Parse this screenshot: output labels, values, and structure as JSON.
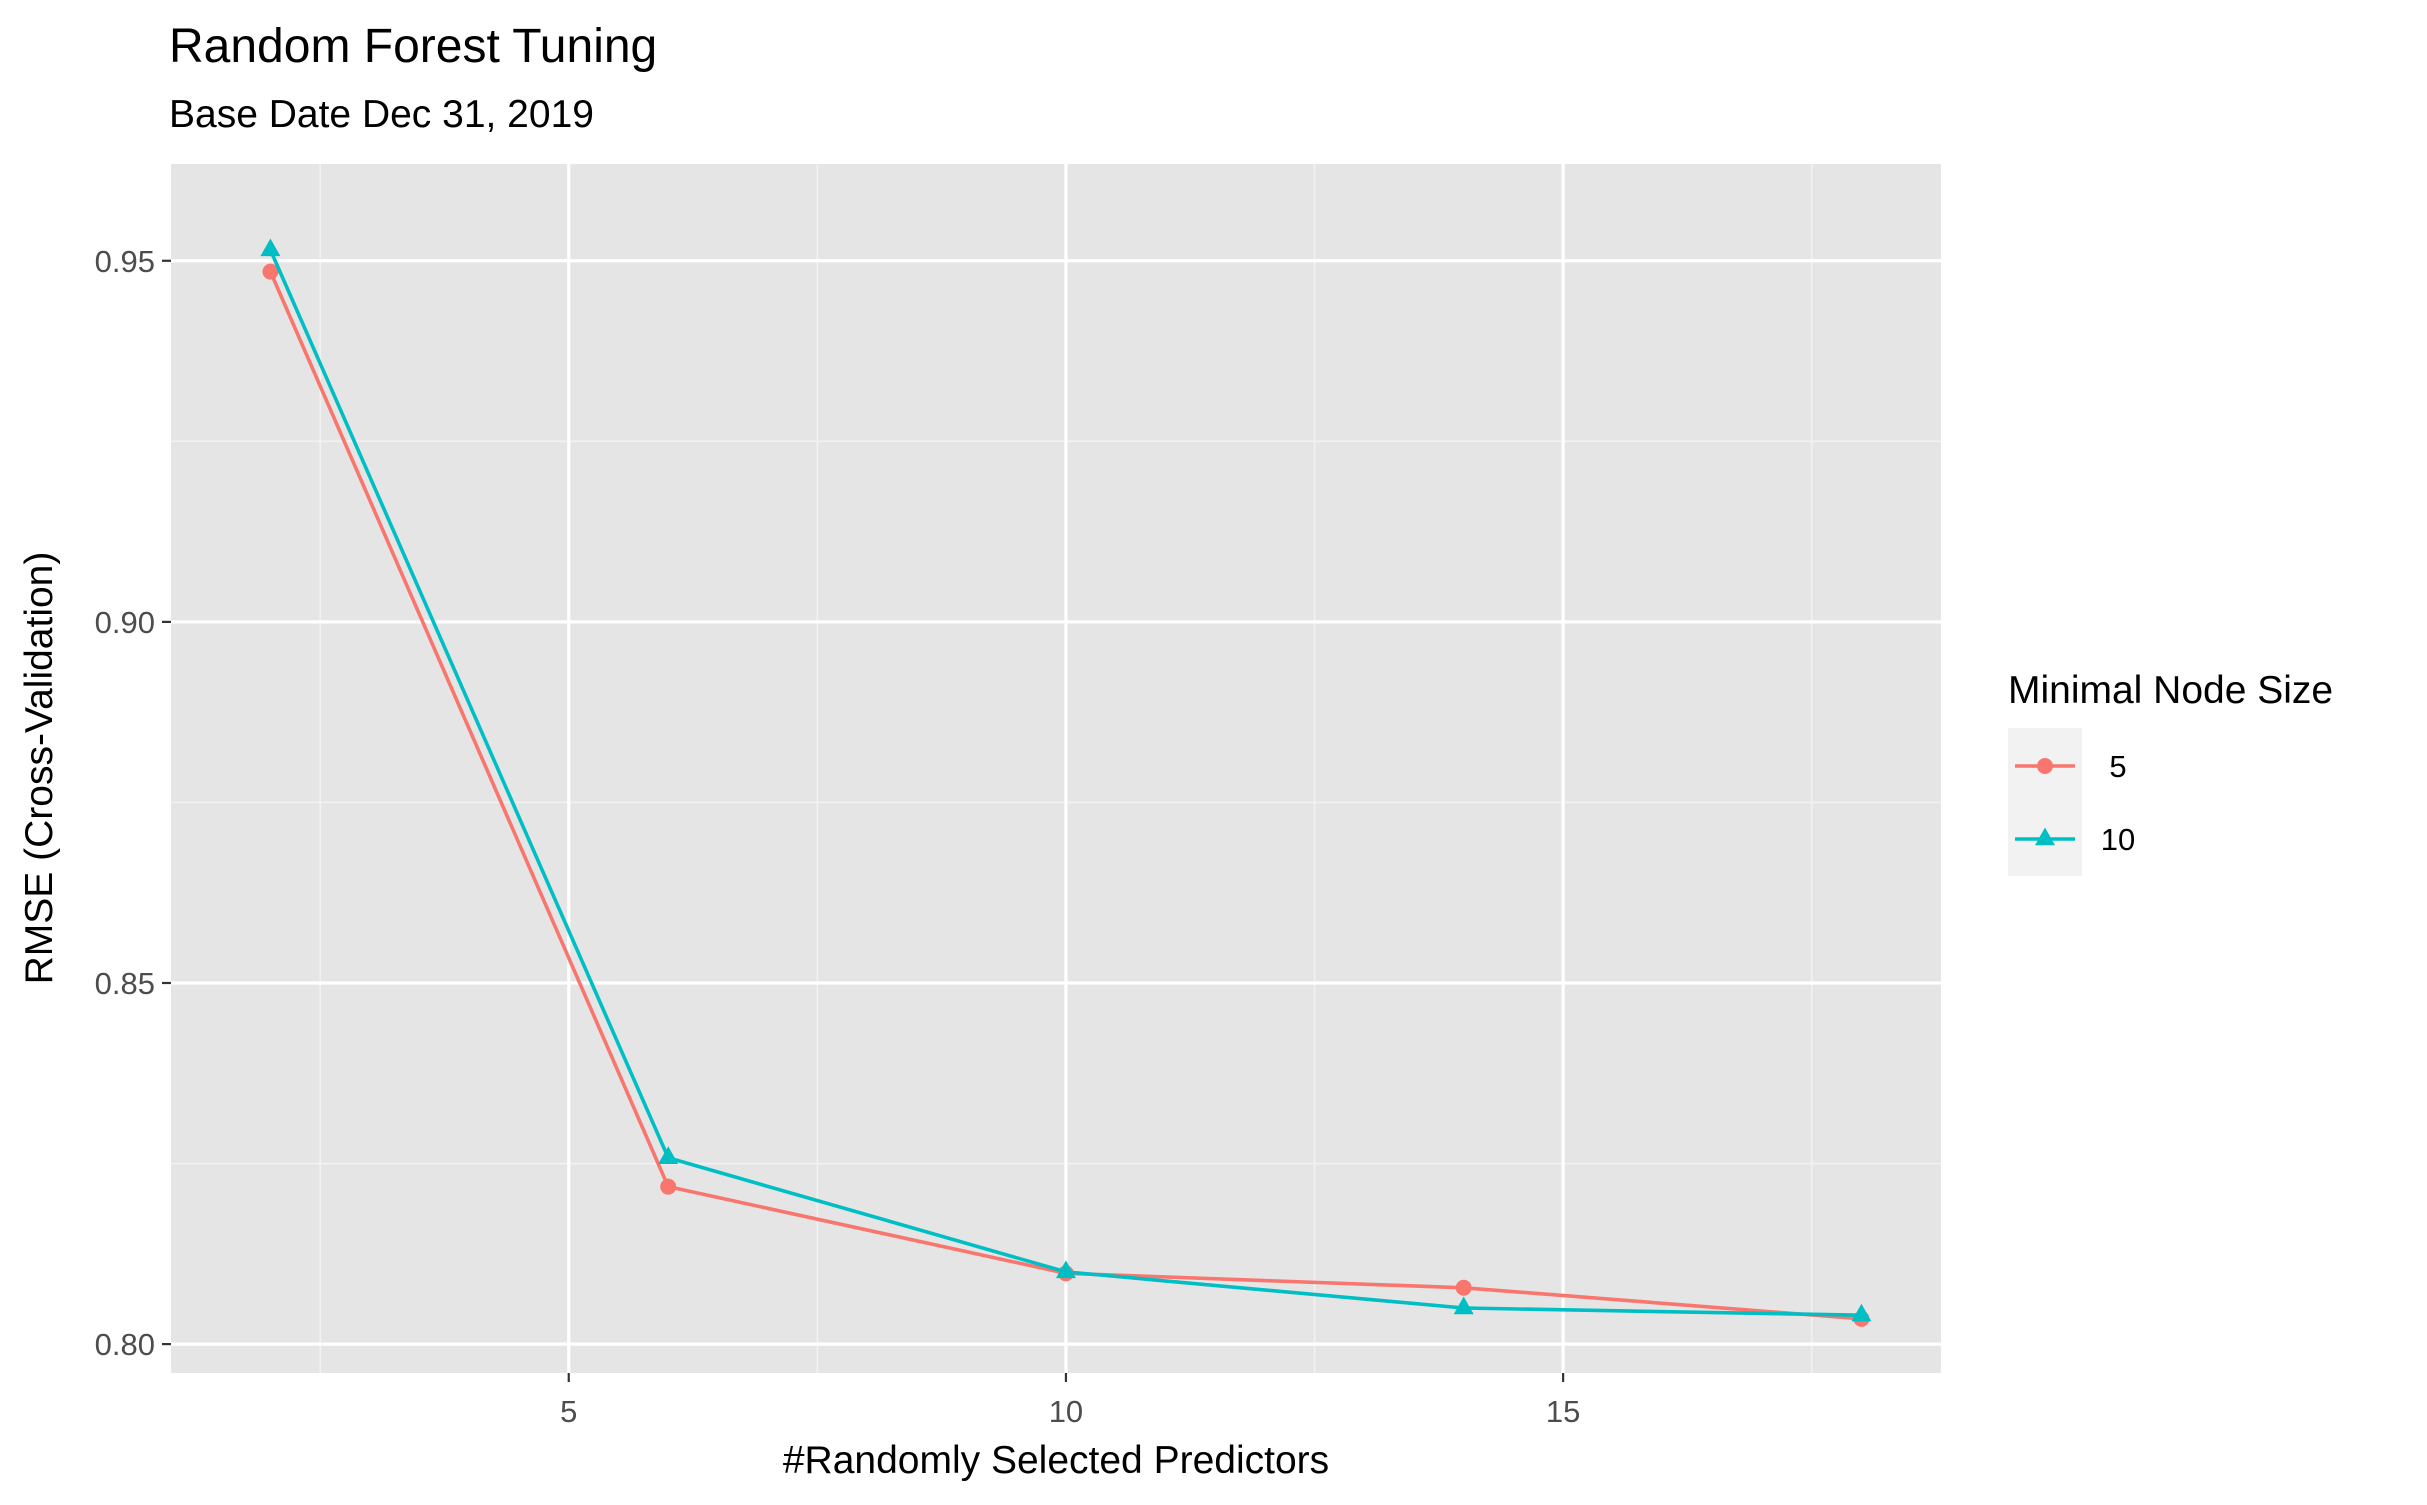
{
  "chart_data": {
    "type": "line",
    "title": "Random Forest Tuning",
    "subtitle": "Base Date Dec 31, 2019",
    "xlabel": "#Randomly Selected Predictors",
    "ylabel": "RMSE (Cross-Validation)",
    "xlim": [
      1.0,
      18.8
    ],
    "ylim": [
      0.796,
      0.9634
    ],
    "xticks": [
      5,
      10,
      15
    ],
    "yticks": [
      0.8,
      0.85,
      0.9,
      0.95
    ],
    "xtick_labels": [
      "5",
      "10",
      "15"
    ],
    "ytick_labels": [
      "0.80",
      "0.85",
      "0.90",
      "0.95"
    ],
    "grid": true,
    "panel_background": "#e5e5e5",
    "legend": {
      "title": "Minimal Node Size",
      "position": "right"
    },
    "series": [
      {
        "name": "5",
        "color": "#F8766D",
        "marker": "circle",
        "x": [
          2,
          6,
          10,
          14,
          18
        ],
        "y": [
          0.9485,
          0.8218,
          0.8098,
          0.8078,
          0.8035
        ]
      },
      {
        "name": "10",
        "color": "#00BFC4",
        "marker": "triangle",
        "x": [
          2,
          6,
          10,
          14,
          18
        ],
        "y": [
          0.9515,
          0.8258,
          0.81,
          0.805,
          0.804
        ]
      }
    ]
  }
}
